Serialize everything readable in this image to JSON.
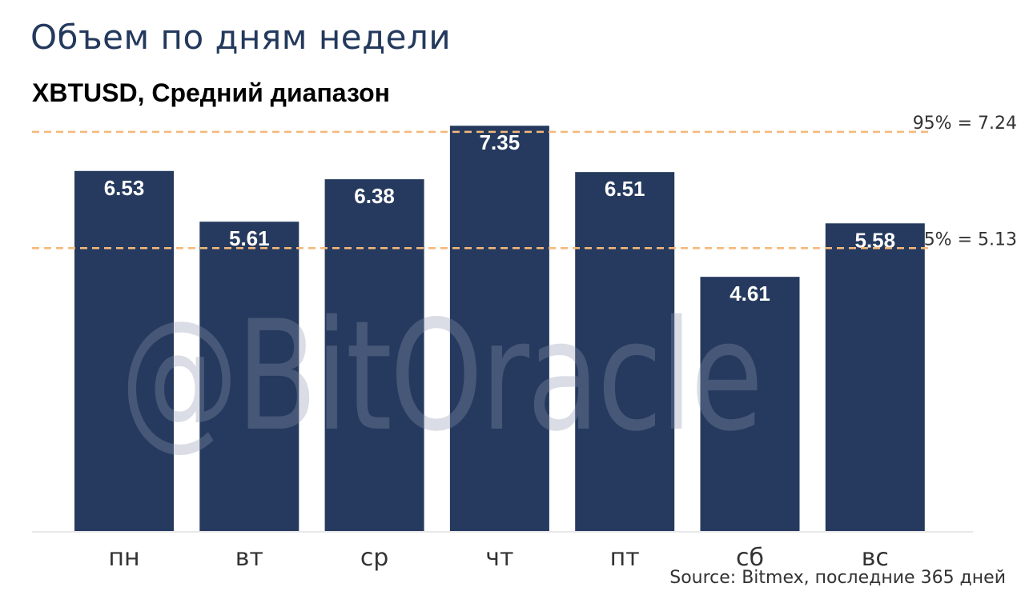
{
  "title": "Объем по дням недели",
  "subtitle": "XBTUSD, Средний диапазон",
  "watermark": "@BitOracle",
  "source": "Source: Bitmex, последние 365 дней",
  "colors": {
    "bar": "#253a5e",
    "bar_label": "#ffffff",
    "reference_line": "#f5b87a",
    "axis_label": "#333333",
    "baseline": "#e8e8e8"
  },
  "chart_data": {
    "type": "bar",
    "categories": [
      "пн",
      "вт",
      "ср",
      "чт",
      "пт",
      "сб",
      "вс"
    ],
    "values": [
      6.53,
      5.61,
      6.38,
      7.35,
      6.51,
      4.61,
      5.58
    ],
    "data_labels": [
      "6.53",
      "5.61",
      "6.38",
      "7.35",
      "6.51",
      "4.61",
      "5.58"
    ],
    "reference_lines": [
      {
        "label": "95% = 7.24",
        "value": 7.24
      },
      {
        "label": "5% = 5.13",
        "value": 5.13
      }
    ],
    "ylim": [
      0,
      7.6
    ],
    "grid": false,
    "legend": "none"
  }
}
